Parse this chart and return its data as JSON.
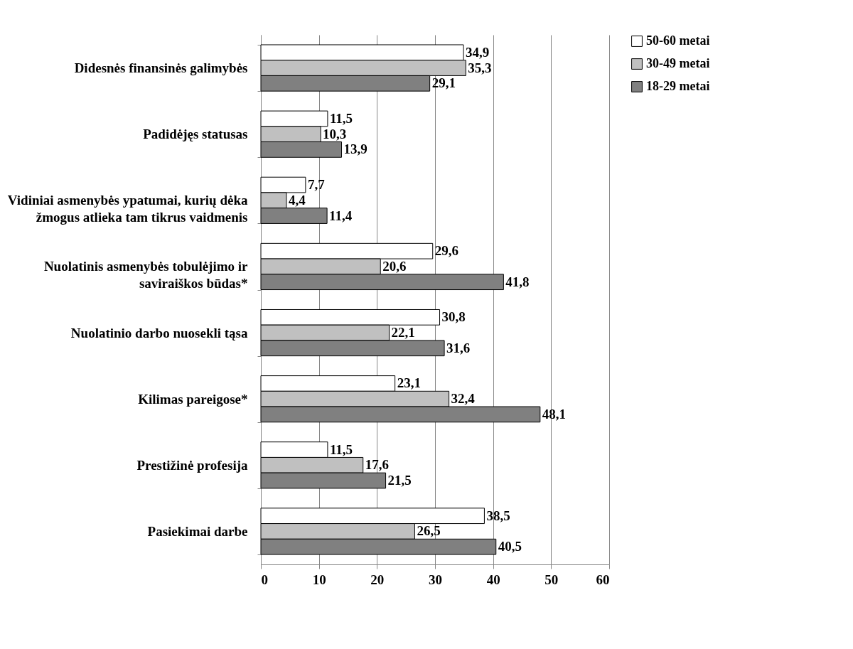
{
  "chart_data": {
    "type": "bar",
    "orientation": "horizontal",
    "categories": [
      "Didesnės finansinės galimybės",
      "Padidėjęs statusas",
      "Vidiniai asmenybės ypatumai, kurių dėka\nžmogus atlieka tam tikrus vaidmenis",
      "Nuolatinis asmenybės tobulėjimo ir\nsaviraiškos būdas*",
      "Nuolatinio darbo nuosekli tąsa",
      "Kilimas pareigose*",
      "Prestižinė profesija",
      "Pasiekimai darbe"
    ],
    "series": [
      {
        "name": "50-60 metai",
        "color": "#ffffff",
        "values": [
          34.9,
          11.5,
          7.7,
          29.6,
          30.8,
          23.1,
          11.5,
          38.5
        ],
        "value_labels": [
          "34,9",
          "11,5",
          "7,7",
          "29,6",
          "30,8",
          "23,1",
          "11,5",
          "38,5"
        ]
      },
      {
        "name": "30-49 metai",
        "color": "#c0c0c0",
        "values": [
          35.3,
          10.3,
          4.4,
          20.6,
          22.1,
          32.4,
          17.6,
          26.5
        ],
        "value_labels": [
          "35,3",
          "10,3",
          "4,4",
          "20,6",
          "22,1",
          "32,4",
          "17,6",
          "26,5"
        ]
      },
      {
        "name": "18-29 metai",
        "color": "#808080",
        "values": [
          29.1,
          13.9,
          11.4,
          41.8,
          31.6,
          48.1,
          21.5,
          40.5
        ],
        "value_labels": [
          "29,1",
          "13,9",
          "11,4",
          "41,8",
          "31,6",
          "48,1",
          "21,5",
          "40,5"
        ]
      }
    ],
    "xlim": [
      0,
      60
    ],
    "xticks": [
      0,
      10,
      20,
      30,
      40,
      50,
      60
    ],
    "grid": "x",
    "legend": "right"
  }
}
